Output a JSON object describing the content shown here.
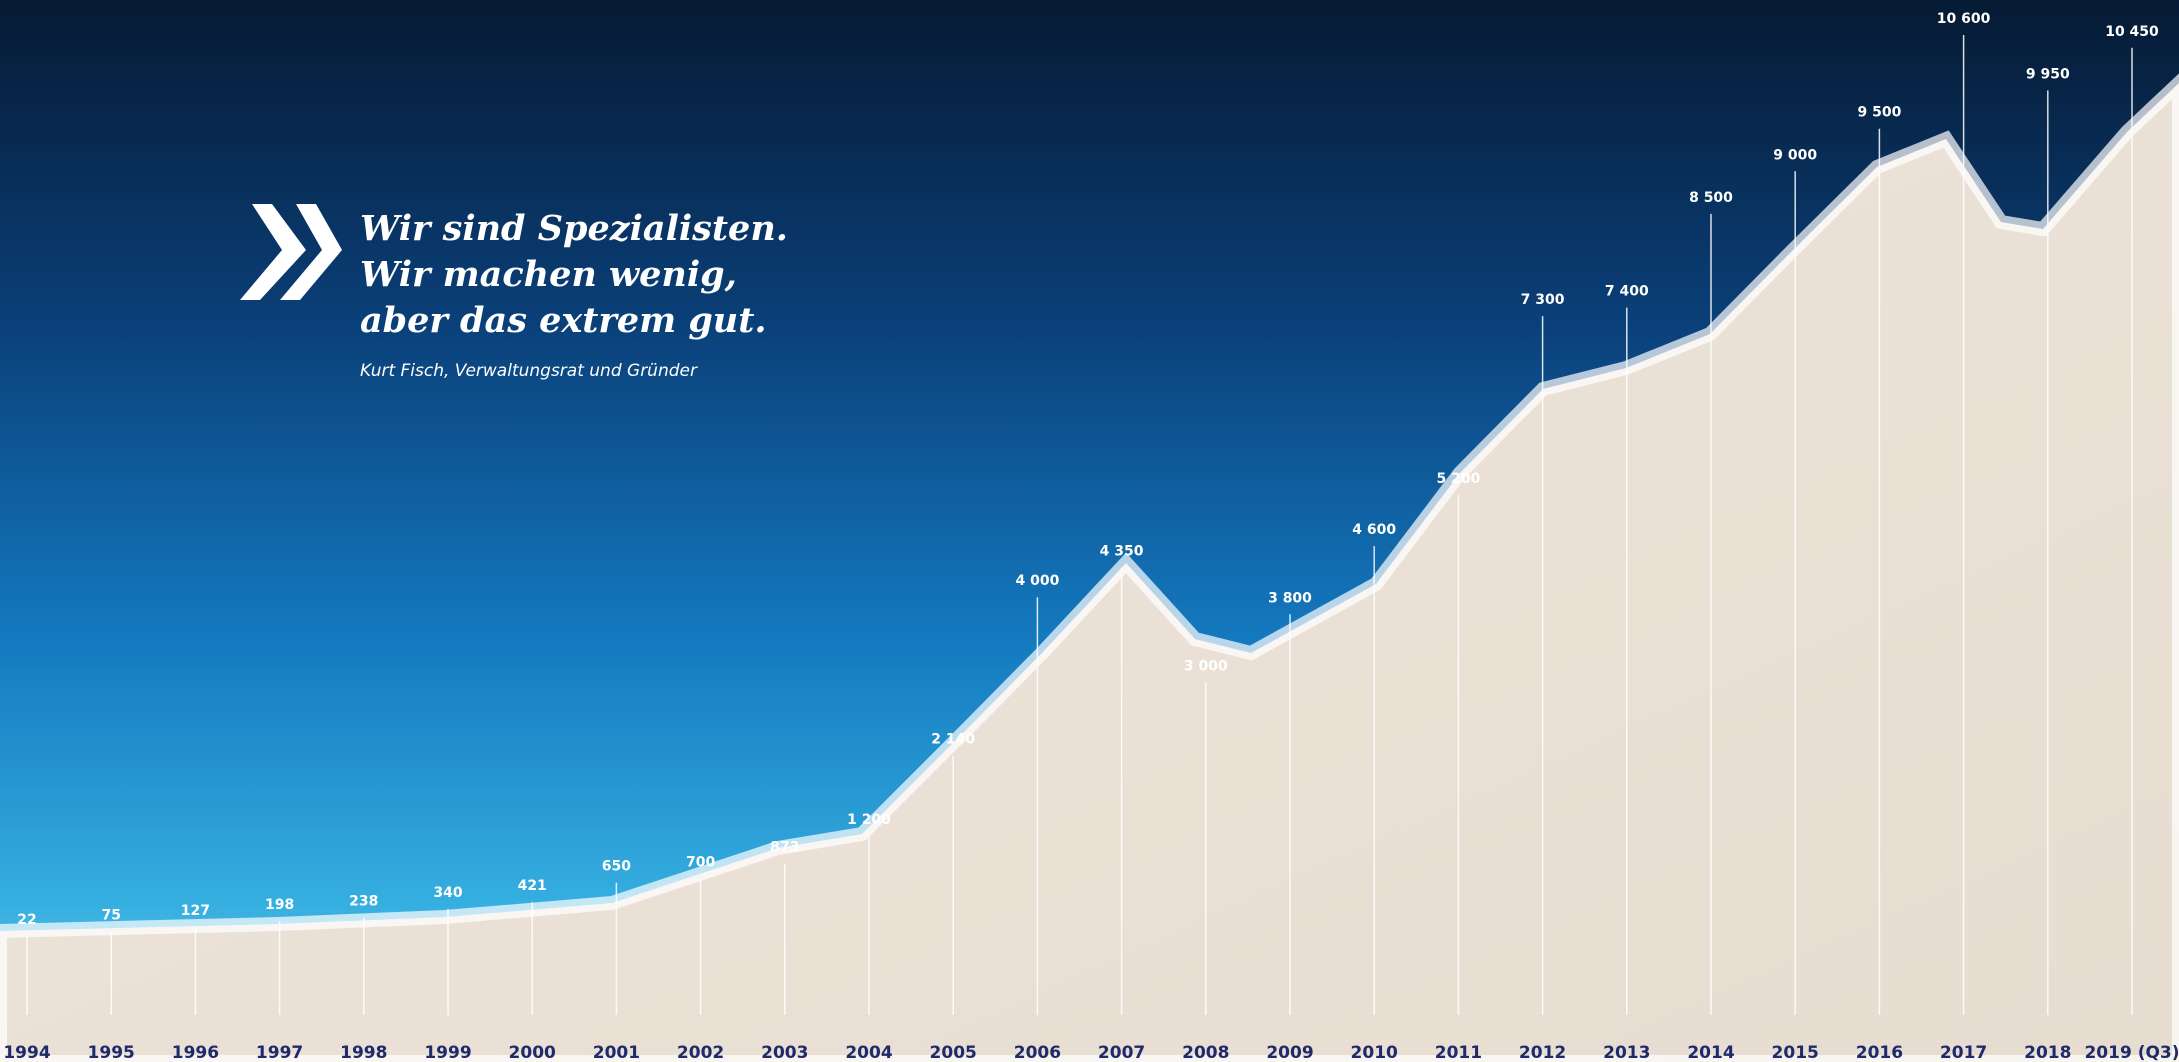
{
  "chart_data": {
    "type": "stem",
    "categories": [
      "1994",
      "1995",
      "1996",
      "1997",
      "1998",
      "1999",
      "2000",
      "2001",
      "2002",
      "2003",
      "2004",
      "2005",
      "2006",
      "2007",
      "2008",
      "2009",
      "2010",
      "2011",
      "2012",
      "2013",
      "2014",
      "2015",
      "2016",
      "2017",
      "2018",
      "2019 (Q3)"
    ],
    "values": [
      22,
      75,
      127,
      198,
      238,
      340,
      421,
      650,
      700,
      873,
      1200,
      2140,
      4000,
      4350,
      3000,
      3800,
      4600,
      5200,
      7300,
      7400,
      8500,
      9000,
      9500,
      10600,
      9950,
      10450
    ],
    "value_labels": [
      "22",
      "75",
      "127",
      "198",
      "238",
      "340",
      "421",
      "650",
      "700",
      "873",
      "1 200",
      "2 140",
      "4 000",
      "4 350",
      "3 000",
      "3 800",
      "4 600",
      "5 200",
      "7 300",
      "7 400",
      "8 500",
      "9 000",
      "9 500",
      "10 600",
      "9 950",
      "10 450"
    ],
    "color": "#ffffff",
    "label_color": "#1f2a6b"
  },
  "quote": {
    "lines": [
      "Wir sind Spezialisten.",
      "Wir machen wenig,",
      "aber das extrem gut."
    ],
    "author": "Kurt Fisch, Verwaltungsrat und Gründer"
  }
}
